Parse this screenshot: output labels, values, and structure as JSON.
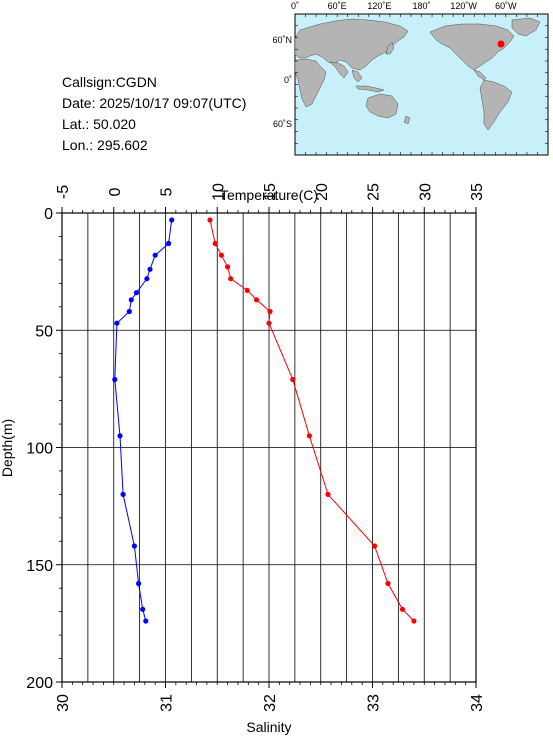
{
  "station": {
    "callsign": "Callsign:CGDN",
    "date": "Date:  2025/10/17 09:07(UTC)",
    "lat": "Lat.:   50.020",
    "lon": "Lon.:  295.602"
  },
  "map": {
    "top_labels": [
      "0˚",
      "60˚E",
      "120˚E",
      "180˚",
      "120˚W",
      "60˚W"
    ],
    "left_labels": [
      "60˚N",
      "0˚",
      "60˚S"
    ],
    "ocean_color": "#c8f0fa",
    "land_color": "#b4b4b4",
    "marker_color": "#ff0000"
  },
  "chart_data": {
    "type": "line",
    "ylabel": "Depth(m)",
    "ylim": [
      200,
      0
    ],
    "yticks": [
      0,
      50,
      100,
      150,
      200
    ],
    "temperature_axis": {
      "label": "Temperature(C)",
      "range": [
        -5,
        35
      ],
      "ticks": [
        -5,
        0,
        5,
        10,
        15,
        20,
        25,
        30,
        35
      ]
    },
    "salinity_axis": {
      "label": "Salinity",
      "range": [
        30,
        34
      ],
      "ticks": [
        30,
        31,
        32,
        33,
        34
      ]
    },
    "grid": true,
    "series": [
      {
        "axis": "temperature",
        "color": "#0000ff",
        "points": [
          {
            "t": 5.6,
            "depth": 3
          },
          {
            "t": 5.3,
            "depth": 13
          },
          {
            "t": 4.0,
            "depth": 18
          },
          {
            "t": 3.5,
            "depth": 24
          },
          {
            "t": 3.2,
            "depth": 28
          },
          {
            "t": 2.2,
            "depth": 34
          },
          {
            "t": 1.7,
            "depth": 37
          },
          {
            "t": 1.5,
            "depth": 42
          },
          {
            "t": 0.3,
            "depth": 47
          },
          {
            "t": 0.1,
            "depth": 71
          },
          {
            "t": 0.6,
            "depth": 95
          },
          {
            "t": 0.9,
            "depth": 120
          },
          {
            "t": 2.0,
            "depth": 142
          },
          {
            "t": 2.4,
            "depth": 158
          },
          {
            "t": 2.8,
            "depth": 169
          },
          {
            "t": 3.1,
            "depth": 174
          }
        ]
      },
      {
        "axis": "salinity",
        "color": "#ff0000",
        "points": [
          {
            "s": 31.43,
            "depth": 3
          },
          {
            "s": 31.48,
            "depth": 13
          },
          {
            "s": 31.54,
            "depth": 18
          },
          {
            "s": 31.6,
            "depth": 23
          },
          {
            "s": 31.63,
            "depth": 28
          },
          {
            "s": 31.79,
            "depth": 33
          },
          {
            "s": 31.88,
            "depth": 37
          },
          {
            "s": 32.01,
            "depth": 42
          },
          {
            "s": 32.0,
            "depth": 47
          },
          {
            "s": 32.23,
            "depth": 71
          },
          {
            "s": 32.39,
            "depth": 95
          },
          {
            "s": 32.57,
            "depth": 120
          },
          {
            "s": 33.02,
            "depth": 142
          },
          {
            "s": 33.15,
            "depth": 158
          },
          {
            "s": 33.29,
            "depth": 169
          },
          {
            "s": 33.4,
            "depth": 174
          }
        ]
      }
    ]
  }
}
